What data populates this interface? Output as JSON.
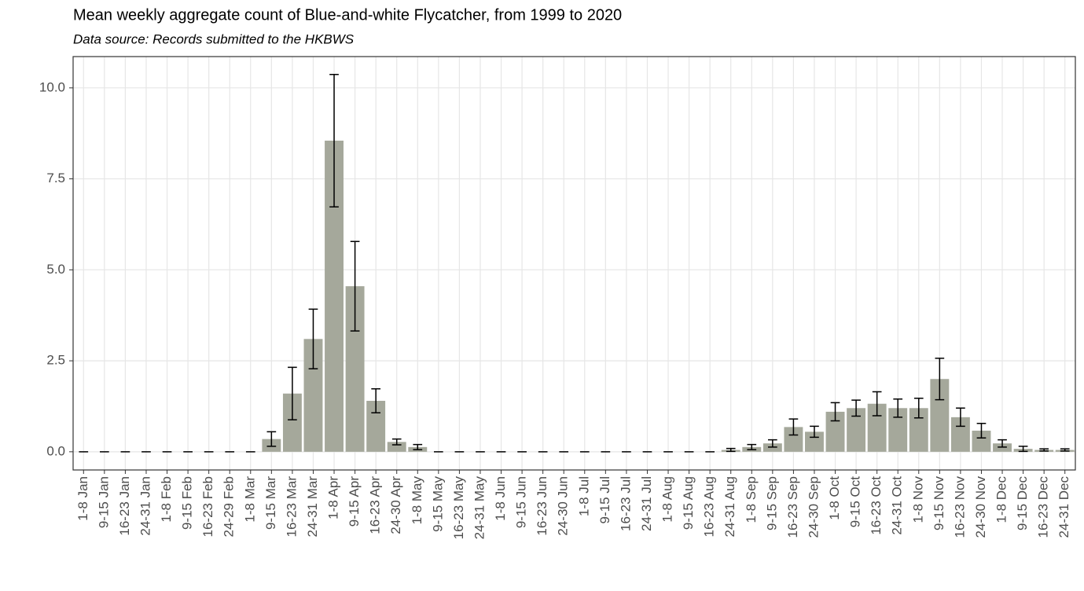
{
  "chart_data": {
    "type": "bar",
    "title": "Mean weekly aggregate count of Blue-and-white Flycatcher, from 1999 to 2020",
    "subtitle": "Data source: Records submitted to the HKBWS",
    "categories": [
      "1-8 Jan",
      "9-15 Jan",
      "16-23 Jan",
      "24-31 Jan",
      "1-8 Feb",
      "9-15 Feb",
      "16-23 Feb",
      "24-29 Feb",
      "1-8 Mar",
      "9-15 Mar",
      "16-23 Mar",
      "24-31 Mar",
      "1-8 Apr",
      "9-15 Apr",
      "16-23 Apr",
      "24-30 Apr",
      "1-8 May",
      "9-15 May",
      "16-23 May",
      "24-31 May",
      "1-8 Jun",
      "9-15 Jun",
      "16-23 Jun",
      "24-30 Jun",
      "1-8 Jul",
      "9-15 Jul",
      "16-23 Jul",
      "24-31 Jul",
      "1-8 Aug",
      "9-15 Aug",
      "16-23 Aug",
      "24-31 Aug",
      "1-8 Sep",
      "9-15 Sep",
      "16-23 Sep",
      "24-30 Sep",
      "1-8 Oct",
      "9-15 Oct",
      "16-23 Oct",
      "24-31 Oct",
      "1-8 Nov",
      "9-15 Nov",
      "16-23 Nov",
      "24-30 Nov",
      "1-8 Dec",
      "9-15 Dec",
      "16-23 Dec",
      "24-31 Dec"
    ],
    "values": [
      0,
      0,
      0,
      0,
      0,
      0,
      0,
      0,
      0,
      0.35,
      1.6,
      3.1,
      8.55,
      4.55,
      1.4,
      0.27,
      0.13,
      0,
      0,
      0,
      0,
      0,
      0,
      0,
      0,
      0,
      0,
      0,
      0,
      0,
      0,
      0.05,
      0.13,
      0.23,
      0.68,
      0.55,
      1.1,
      1.2,
      1.32,
      1.2,
      1.2,
      2.0,
      0.95,
      0.58,
      0.23,
      0.08,
      0.05,
      0.05
    ],
    "errors": [
      0,
      0,
      0,
      0,
      0,
      0,
      0,
      0,
      0,
      0.2,
      0.72,
      0.82,
      1.82,
      1.23,
      0.33,
      0.08,
      0.07,
      0,
      0,
      0,
      0,
      0,
      0,
      0,
      0,
      0,
      0,
      0,
      0,
      0,
      0,
      0.04,
      0.07,
      0.1,
      0.22,
      0.15,
      0.25,
      0.22,
      0.33,
      0.25,
      0.27,
      0.57,
      0.25,
      0.2,
      0.1,
      0.07,
      0.03,
      0.03
    ],
    "color": "#a5a89b",
    "ylim": [
      -0.5,
      10.86
    ],
    "yticks": [
      {
        "value": 0,
        "label": "0.0"
      },
      2.5,
      {
        "value": 5,
        "label": "5.0"
      },
      7.5,
      {
        "value": 10,
        "label": "10.0"
      }
    ],
    "grid": true
  }
}
